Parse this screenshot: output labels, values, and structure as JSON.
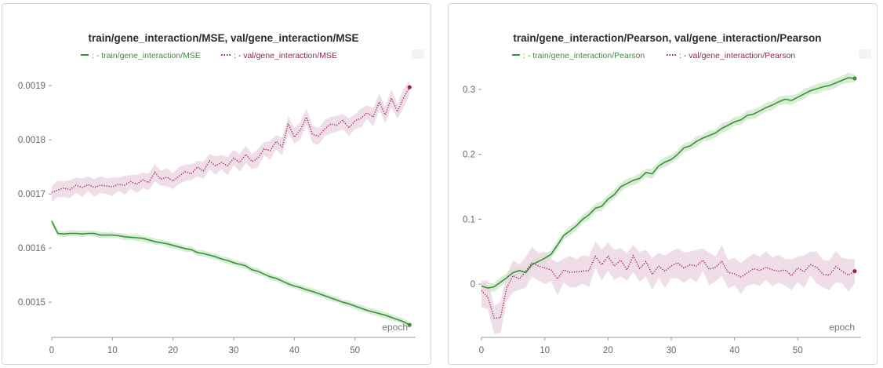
{
  "colors": {
    "train": "#3b8f3e",
    "val": "#9b1f5a",
    "train_band": "#c9e8c6",
    "val_band": "#ead3df",
    "axis": "#999999",
    "text": "#666666"
  },
  "chart_data": [
    {
      "type": "line",
      "title": "train/gene_interaction/MSE, val/gene_interaction/MSE",
      "xlabel": "epoch",
      "ylabel": "",
      "xlim": [
        0,
        60
      ],
      "ylim": [
        0.001435,
        0.001935
      ],
      "xticks": [
        0,
        10,
        20,
        30,
        40,
        50
      ],
      "yticks": [
        0.0015,
        0.0016,
        0.0017,
        0.0018,
        0.0019
      ],
      "ytick_labels": [
        "0.0015",
        "0.0016",
        "0.0017",
        "0.0018",
        "0.0019"
      ],
      "legend_position": "top",
      "x": [
        0,
        1,
        2,
        3,
        4,
        5,
        6,
        7,
        8,
        9,
        10,
        11,
        12,
        13,
        14,
        15,
        16,
        17,
        18,
        19,
        20,
        21,
        22,
        23,
        24,
        25,
        26,
        27,
        28,
        29,
        30,
        31,
        32,
        33,
        34,
        35,
        36,
        37,
        38,
        39,
        40,
        41,
        42,
        43,
        44,
        45,
        46,
        47,
        48,
        49,
        50,
        51,
        52,
        53,
        54,
        55,
        56,
        57,
        58,
        59
      ],
      "series": [
        {
          "name": ": - train/gene_interaction/MSE",
          "style": "solid",
          "values": [
            0.00165,
            0.001627,
            0.001626,
            0.001627,
            0.001627,
            0.001626,
            0.001627,
            0.001627,
            0.001624,
            0.001624,
            0.001624,
            0.001623,
            0.001621,
            0.00162,
            0.001619,
            0.001618,
            0.001615,
            0.001612,
            0.00161,
            0.001608,
            0.001605,
            0.001602,
            0.001599,
            0.001597,
            0.001592,
            0.00159,
            0.001587,
            0.001584,
            0.00158,
            0.001577,
            0.001573,
            0.00157,
            0.001567,
            0.00156,
            0.001557,
            0.001552,
            0.001547,
            0.001544,
            0.001539,
            0.001534,
            0.00153,
            0.001527,
            0.001523,
            0.00152,
            0.001516,
            0.001512,
            0.001508,
            0.001504,
            0.0015,
            0.001497,
            0.001493,
            0.001489,
            0.001485,
            0.001482,
            0.001479,
            0.001476,
            0.001472,
            0.001468,
            0.001464,
            0.001458
          ]
        },
        {
          "name": ": - val/gene_interaction/MSE",
          "style": "dotted",
          "values": [
            0.001703,
            0.001707,
            0.001711,
            0.001708,
            0.001716,
            0.001712,
            0.001717,
            0.001712,
            0.001716,
            0.001715,
            0.001713,
            0.001718,
            0.001716,
            0.001723,
            0.001718,
            0.001726,
            0.001721,
            0.00174,
            0.001727,
            0.001731,
            0.001724,
            0.001733,
            0.001741,
            0.001737,
            0.00175,
            0.001742,
            0.001761,
            0.001752,
            0.001758,
            0.001752,
            0.001766,
            0.001758,
            0.001773,
            0.00176,
            0.001766,
            0.001783,
            0.00178,
            0.001797,
            0.001787,
            0.00183,
            0.001805,
            0.001818,
            0.001842,
            0.00181,
            0.001807,
            0.00182,
            0.001829,
            0.001827,
            0.001836,
            0.001822,
            0.001835,
            0.00184,
            0.00185,
            0.001842,
            0.00187,
            0.001846,
            0.001877,
            0.001852,
            0.001877,
            0.001897
          ]
        }
      ]
    },
    {
      "type": "line",
      "title": "train/gene_interaction/Pearson, val/gene_interaction/Pearson",
      "xlabel": "epoch",
      "ylabel": "",
      "xlim": [
        0,
        60
      ],
      "ylim": [
        -0.082,
        0.335
      ],
      "xticks": [
        0,
        10,
        20,
        30,
        40,
        50
      ],
      "yticks": [
        0,
        0.1,
        0.2,
        0.3
      ],
      "ytick_labels": [
        "0",
        "0.1",
        "0.2",
        "0.3"
      ],
      "legend_position": "top",
      "x": [
        0,
        1,
        2,
        3,
        4,
        5,
        6,
        7,
        8,
        9,
        10,
        11,
        12,
        13,
        14,
        15,
        16,
        17,
        18,
        19,
        20,
        21,
        22,
        23,
        24,
        25,
        26,
        27,
        28,
        29,
        30,
        31,
        32,
        33,
        34,
        35,
        36,
        37,
        38,
        39,
        40,
        41,
        42,
        43,
        44,
        45,
        46,
        47,
        48,
        49,
        50,
        51,
        52,
        53,
        54,
        55,
        56,
        57,
        58,
        59
      ],
      "series": [
        {
          "name": ": - train/gene_interaction/Pearson",
          "style": "solid",
          "values": [
            -0.003,
            -0.006,
            -0.004,
            0.003,
            0.01,
            0.018,
            0.021,
            0.018,
            0.03,
            0.035,
            0.04,
            0.046,
            0.06,
            0.075,
            0.082,
            0.09,
            0.1,
            0.107,
            0.117,
            0.12,
            0.131,
            0.138,
            0.15,
            0.155,
            0.16,
            0.163,
            0.172,
            0.17,
            0.182,
            0.188,
            0.192,
            0.2,
            0.21,
            0.213,
            0.22,
            0.225,
            0.229,
            0.233,
            0.24,
            0.245,
            0.25,
            0.253,
            0.26,
            0.262,
            0.267,
            0.272,
            0.276,
            0.281,
            0.285,
            0.283,
            0.288,
            0.293,
            0.298,
            0.301,
            0.304,
            0.306,
            0.31,
            0.314,
            0.318,
            0.317
          ]
        },
        {
          "name": ": - val/gene_interaction/Pearson",
          "style": "dotted",
          "values": [
            -0.01,
            -0.02,
            -0.052,
            -0.052,
            -0.005,
            0.013,
            0.008,
            0.02,
            0.033,
            0.028,
            0.025,
            0.022,
            0.008,
            0.022,
            0.018,
            0.019,
            0.02,
            0.021,
            0.043,
            0.03,
            0.043,
            0.028,
            0.037,
            0.022,
            0.044,
            0.024,
            0.035,
            0.015,
            0.028,
            0.02,
            0.028,
            0.033,
            0.025,
            0.03,
            0.028,
            0.037,
            0.023,
            0.026,
            0.035,
            0.018,
            0.016,
            0.011,
            0.017,
            0.024,
            0.021,
            0.026,
            0.022,
            0.02,
            0.022,
            0.013,
            0.025,
            0.019,
            0.03,
            0.026,
            0.015,
            0.014,
            0.027,
            0.02,
            0.014,
            0.02
          ]
        }
      ]
    }
  ]
}
